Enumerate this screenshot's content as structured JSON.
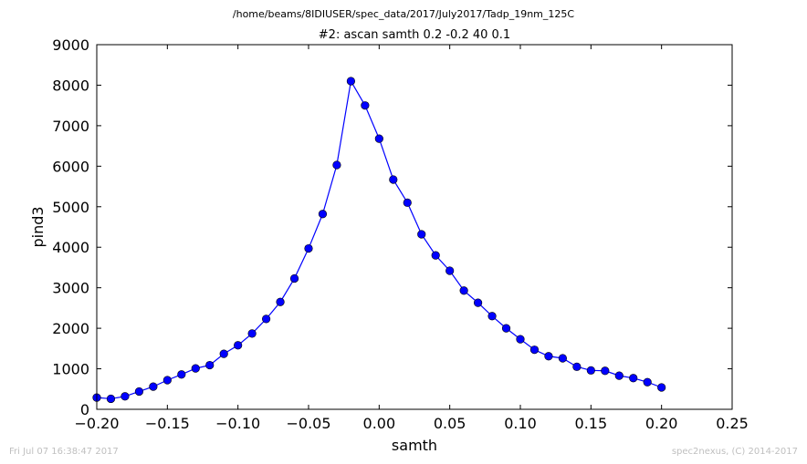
{
  "header": {
    "path": "/home/beams/8IDIUSER/spec_data/2017/July2017/Tadp_19nm_125C"
  },
  "chart_data": {
    "type": "line",
    "title": "#2: ascan  samth 0.2 -0.2  40 0.1",
    "xlabel": "samth",
    "ylabel": "pind3",
    "xlim": [
      -0.2,
      0.25
    ],
    "ylim": [
      0,
      9000
    ],
    "x_ticks": [
      "−0.20",
      "−0.15",
      "−0.10",
      "−0.05",
      "0.00",
      "0.05",
      "0.10",
      "0.15",
      "0.20",
      "0.25"
    ],
    "x_tick_values": [
      -0.2,
      -0.15,
      -0.1,
      -0.05,
      0.0,
      0.05,
      0.1,
      0.15,
      0.2,
      0.25
    ],
    "y_ticks": [
      "0",
      "1000",
      "2000",
      "3000",
      "4000",
      "5000",
      "6000",
      "7000",
      "8000",
      "9000"
    ],
    "y_tick_values": [
      0,
      1000,
      2000,
      3000,
      4000,
      5000,
      6000,
      7000,
      8000,
      9000
    ],
    "grid": false,
    "legend": "none",
    "series": [
      {
        "color": "#0000ff",
        "marker": "circle",
        "x": [
          -0.2,
          -0.19,
          -0.18,
          -0.17,
          -0.16,
          -0.15,
          -0.14,
          -0.13,
          -0.12,
          -0.11,
          -0.1,
          -0.09,
          -0.08,
          -0.07,
          -0.06,
          -0.05,
          -0.04,
          -0.03,
          -0.02,
          -0.01,
          0.0,
          0.01,
          0.02,
          0.03,
          0.04,
          0.05,
          0.06,
          0.07,
          0.08,
          0.09,
          0.1,
          0.11,
          0.12,
          0.13,
          0.14,
          0.15,
          0.16,
          0.17,
          0.18,
          0.19,
          0.2
        ],
        "y": [
          290,
          260,
          320,
          440,
          560,
          720,
          860,
          1010,
          1090,
          1370,
          1580,
          1870,
          2230,
          2650,
          3230,
          3970,
          4820,
          6030,
          8100,
          7500,
          6680,
          5670,
          5100,
          4320,
          3800,
          3420,
          2930,
          2630,
          2300,
          2000,
          1730,
          1470,
          1310,
          1260,
          1050,
          960,
          950,
          830,
          770,
          670,
          540
        ]
      }
    ]
  },
  "footer": {
    "left": "Fri Jul 07 16:38:47 2017",
    "right": "spec2nexus, (C) 2014-2017"
  }
}
